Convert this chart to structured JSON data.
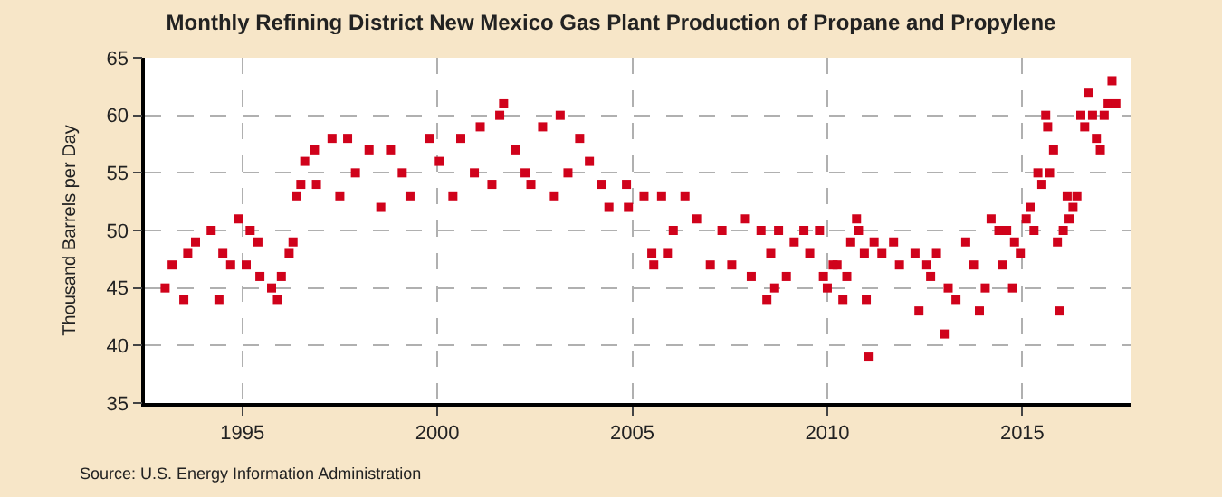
{
  "chart_data": {
    "type": "scatter",
    "title": "Monthly Refining District New Mexico Gas Plant Production of Propane and Propylene",
    "ylabel": "Thousand Barrels per Day",
    "annotations": [
      "Source: U.S. Energy Information Administration"
    ],
    "marker": "square",
    "grid": true,
    "xlim": [
      1992.5,
      2017.8
    ],
    "xticks": [
      1995,
      2000,
      2005,
      2010,
      2015
    ],
    "ylim": [
      35,
      65
    ],
    "yticks": [
      35,
      40,
      45,
      50,
      55,
      60,
      65
    ],
    "x": [
      1993.02,
      1993.2,
      1993.5,
      1993.6,
      1993.8,
      1994.2,
      1994.4,
      1994.5,
      1994.7,
      1994.9,
      1995.1,
      1995.2,
      1995.4,
      1995.45,
      1995.75,
      1995.9,
      1996.0,
      1996.2,
      1996.3,
      1996.4,
      1996.5,
      1996.6,
      1996.85,
      1996.9,
      1997.3,
      1997.5,
      1997.7,
      1997.9,
      1998.25,
      1998.55,
      1998.8,
      1999.1,
      1999.3,
      1999.8,
      2000.05,
      2000.4,
      2000.6,
      2000.95,
      2001.1,
      2001.4,
      2001.6,
      2001.7,
      2002.0,
      2002.25,
      2002.4,
      2002.7,
      2003.0,
      2003.15,
      2003.35,
      2003.65,
      2003.9,
      2004.2,
      2004.4,
      2004.85,
      2004.9,
      2005.3,
      2005.5,
      2005.55,
      2005.75,
      2005.9,
      2006.05,
      2006.35,
      2006.65,
      2007.0,
      2007.3,
      2007.55,
      2007.9,
      2008.05,
      2008.3,
      2008.45,
      2008.55,
      2008.65,
      2008.75,
      2008.95,
      2009.15,
      2009.4,
      2009.55,
      2009.8,
      2009.9,
      2010.0,
      2010.15,
      2010.25,
      2010.4,
      2010.5,
      2010.6,
      2010.75,
      2010.8,
      2010.95,
      2011.0,
      2011.05,
      2011.2,
      2011.4,
      2011.7,
      2011.85,
      2012.25,
      2012.35,
      2012.55,
      2012.65,
      2012.8,
      2013.0,
      2013.1,
      2013.3,
      2013.55,
      2013.75,
      2013.9,
      2014.05,
      2014.2,
      2014.4,
      2014.5,
      2014.6,
      2014.75,
      2014.8,
      2014.95,
      2015.1,
      2015.2,
      2015.3,
      2015.4,
      2015.5,
      2015.6,
      2015.65,
      2015.7,
      2015.8,
      2015.9,
      2015.95,
      2016.05,
      2016.15,
      2016.2,
      2016.3,
      2016.4,
      2016.5,
      2016.6,
      2016.7,
      2016.8,
      2016.9,
      2017.0,
      2017.1,
      2017.2,
      2017.3,
      2017.4
    ],
    "series": [
      {
        "color": "#d0021b",
        "values": [
          45,
          47,
          44,
          48,
          49,
          50,
          44,
          48,
          47,
          51,
          47,
          50,
          49,
          46,
          45,
          44,
          46,
          48,
          49,
          53,
          54,
          56,
          57,
          54,
          58,
          53,
          58,
          55,
          57,
          52,
          57,
          55,
          53,
          58,
          56,
          53,
          58,
          55,
          59,
          54,
          60,
          61,
          57,
          55,
          54,
          59,
          53,
          60,
          55,
          58,
          56,
          54,
          52,
          54,
          52,
          53,
          48,
          47,
          53,
          48,
          50,
          53,
          51,
          47,
          50,
          47,
          51,
          46,
          50,
          44,
          48,
          45,
          50,
          46,
          49,
          50,
          48,
          50,
          46,
          45,
          47,
          47,
          44,
          46,
          49,
          51,
          50,
          48,
          44,
          39,
          49,
          48,
          49,
          47,
          48,
          43,
          47,
          46,
          48,
          41,
          45,
          44,
          49,
          47,
          43,
          45,
          51,
          50,
          47,
          50,
          45,
          49,
          48,
          51,
          52,
          50,
          55,
          54,
          60,
          59,
          55,
          57,
          49,
          43,
          50,
          53,
          51,
          52,
          53,
          60,
          59,
          62,
          60,
          58,
          57,
          60,
          61,
          63,
          61
        ]
      }
    ]
  }
}
